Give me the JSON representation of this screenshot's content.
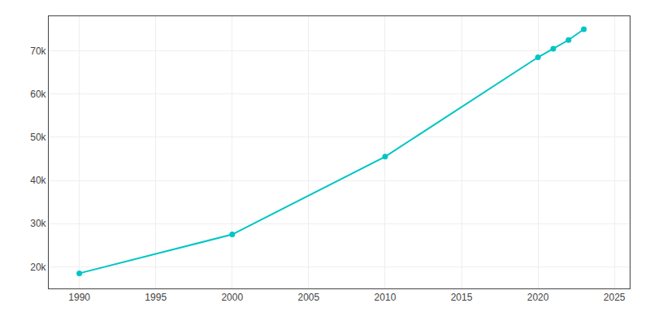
{
  "chart_data": {
    "type": "line",
    "x": [
      1990,
      2000,
      2010,
      2020,
      2021,
      2022,
      2023
    ],
    "values": [
      18500,
      27500,
      45500,
      68500,
      70500,
      72500,
      75000
    ],
    "color": "#00C5C5",
    "marker": "circle",
    "xlim": [
      1988,
      2026
    ],
    "ylim": [
      15000,
      78000
    ],
    "xticks": [
      1990,
      1995,
      2000,
      2005,
      2010,
      2015,
      2020,
      2025
    ],
    "yticks": [
      {
        "value": 20000,
        "label": "20k"
      },
      {
        "value": 30000,
        "label": "30k"
      },
      {
        "value": 40000,
        "label": "40k"
      },
      {
        "value": 50000,
        "label": "50k"
      },
      {
        "value": 60000,
        "label": "60k"
      },
      {
        "value": 70000,
        "label": "70k"
      }
    ],
    "grid": true
  }
}
